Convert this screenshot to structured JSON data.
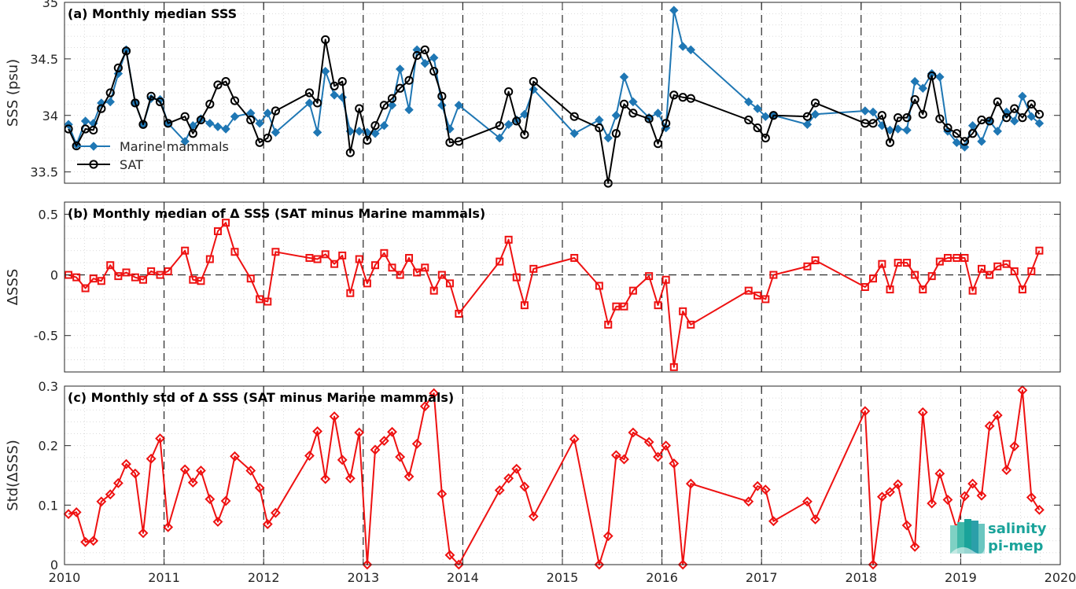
{
  "colors": {
    "marine": "#1f77b4",
    "sat": "#000000",
    "delta": "#ee1111",
    "grid": "#d0d0d0",
    "logo": "#1aa39a"
  },
  "logo": {
    "line1": "salinity",
    "line2": "pi-mep"
  },
  "chart_data": [
    {
      "type": "line",
      "title": "(a) Monthly median SSS",
      "ylabel": "SSS (psu)",
      "xlim": [
        2010,
        2020
      ],
      "ylim": [
        33.4,
        35
      ],
      "yticks": [
        33.5,
        34,
        34.5,
        35
      ],
      "ytick_labels": [
        "33.5",
        "34",
        "34.5",
        "35"
      ],
      "grid": "on",
      "legend": {
        "position": "lower-left",
        "entries": [
          "Marine mammals",
          "SAT"
        ]
      },
      "series": [
        {
          "name": "Marine mammals",
          "marker": "diamond",
          "x": [
            2010.04,
            2010.12,
            2010.21,
            2010.29,
            2010.37,
            2010.46,
            2010.54,
            2010.62,
            2010.71,
            2010.79,
            2010.87,
            2010.96,
            2011.04,
            2011.21,
            2011.29,
            2011.37,
            2011.46,
            2011.54,
            2011.62,
            2011.71,
            2011.87,
            2011.96,
            2012.04,
            2012.12,
            2012.46,
            2012.54,
            2012.62,
            2012.71,
            2012.79,
            2012.87,
            2012.96,
            2013.04,
            2013.12,
            2013.21,
            2013.29,
            2013.37,
            2013.46,
            2013.54,
            2013.62,
            2013.71,
            2013.79,
            2013.87,
            2013.96,
            2014.37,
            2014.46,
            2014.54,
            2014.62,
            2014.71,
            2015.12,
            2015.37,
            2015.46,
            2015.54,
            2015.62,
            2015.71,
            2015.87,
            2015.96,
            2016.04,
            2016.12,
            2016.21,
            2016.29,
            2016.87,
            2016.96,
            2017.04,
            2017.12,
            2017.46,
            2017.54,
            2018.04,
            2018.12,
            2018.21,
            2018.29,
            2018.37,
            2018.46,
            2018.54,
            2018.62,
            2018.71,
            2018.79,
            2018.87,
            2018.96,
            2019.04,
            2019.12,
            2019.21,
            2019.29,
            2019.37,
            2019.46,
            2019.54,
            2019.62,
            2019.71,
            2019.79
          ],
          "y": [
            33.92,
            33.74,
            33.95,
            33.93,
            34.11,
            34.12,
            34.37,
            34.58,
            34.11,
            33.92,
            34.15,
            34.14,
            33.93,
            33.77,
            33.91,
            33.97,
            33.93,
            33.9,
            33.88,
            33.99,
            34.02,
            33.93,
            34.02,
            33.85,
            34.11,
            33.85,
            34.39,
            34.18,
            34.16,
            33.86,
            33.86,
            33.85,
            33.84,
            33.91,
            34.09,
            34.41,
            34.05,
            34.58,
            34.46,
            34.51,
            34.09,
            33.88,
            34.09,
            33.8,
            33.92,
            33.96,
            34.01,
            34.23,
            33.84,
            33.96,
            33.8,
            34.0,
            34.34,
            34.12,
            33.98,
            34.02,
            33.89,
            34.93,
            34.61,
            34.58,
            34.12,
            34.06,
            33.99,
            34.0,
            33.92,
            34.01,
            34.04,
            34.03,
            33.91,
            33.87,
            33.88,
            33.87,
            34.3,
            34.24,
            34.37,
            34.34,
            33.86,
            33.76,
            33.72,
            33.91,
            33.77,
            33.95,
            33.86,
            34.03,
            33.95,
            34.17,
            33.99,
            33.93
          ]
        },
        {
          "name": "SAT",
          "marker": "circle",
          "x": [
            2010.04,
            2010.12,
            2010.21,
            2010.29,
            2010.37,
            2010.46,
            2010.54,
            2010.62,
            2010.71,
            2010.79,
            2010.87,
            2010.96,
            2011.04,
            2011.21,
            2011.29,
            2011.37,
            2011.46,
            2011.54,
            2011.62,
            2011.71,
            2011.87,
            2011.96,
            2012.04,
            2012.12,
            2012.46,
            2012.54,
            2012.62,
            2012.71,
            2012.79,
            2012.87,
            2012.96,
            2013.04,
            2013.12,
            2013.21,
            2013.29,
            2013.37,
            2013.46,
            2013.54,
            2013.62,
            2013.71,
            2013.79,
            2013.87,
            2013.96,
            2014.37,
            2014.46,
            2014.54,
            2014.62,
            2014.71,
            2015.12,
            2015.37,
            2015.46,
            2015.54,
            2015.62,
            2015.71,
            2015.87,
            2015.96,
            2016.04,
            2016.12,
            2016.21,
            2016.29,
            2016.87,
            2016.96,
            2017.04,
            2017.12,
            2017.46,
            2017.54,
            2018.04,
            2018.12,
            2018.21,
            2018.29,
            2018.37,
            2018.46,
            2018.54,
            2018.62,
            2018.71,
            2018.79,
            2018.87,
            2018.96,
            2019.04,
            2019.12,
            2019.21,
            2019.29,
            2019.37,
            2019.46,
            2019.54,
            2019.62,
            2019.71,
            2019.79
          ],
          "y": [
            33.88,
            33.73,
            33.88,
            33.87,
            34.06,
            34.2,
            34.42,
            34.57,
            34.11,
            33.92,
            34.17,
            34.12,
            33.93,
            33.99,
            33.84,
            33.96,
            34.1,
            34.27,
            34.3,
            34.13,
            33.96,
            33.76,
            33.8,
            34.04,
            34.2,
            34.11,
            34.67,
            34.26,
            34.3,
            33.67,
            34.06,
            33.78,
            33.91,
            34.09,
            34.15,
            34.24,
            34.31,
            34.53,
            34.58,
            34.39,
            34.17,
            33.76,
            33.77,
            33.91,
            34.21,
            33.95,
            33.83,
            34.3,
            33.99,
            33.89,
            33.4,
            33.84,
            34.1,
            34.02,
            33.97,
            33.75,
            33.93,
            34.18,
            34.16,
            34.15,
            33.96,
            33.89,
            33.8,
            34.0,
            33.99,
            34.11,
            33.93,
            33.93,
            34.0,
            33.76,
            33.98,
            33.98,
            34.14,
            34.01,
            34.35,
            33.97,
            33.89,
            33.84,
            33.77,
            33.84,
            33.96,
            33.95,
            34.12,
            33.98,
            34.06,
            33.98,
            34.1,
            34.01
          ]
        }
      ]
    },
    {
      "type": "line",
      "title": "(b) Monthly median of Δ SSS (SAT minus Marine mammals)",
      "ylabel": "ΔSSS",
      "xlim": [
        2010,
        2020
      ],
      "ylim": [
        -0.8,
        0.6
      ],
      "yticks": [
        -0.5,
        0,
        0.5
      ],
      "ytick_labels": [
        "-0.5",
        "0",
        "0.5"
      ],
      "zero_line": true,
      "grid": "on",
      "series": [
        {
          "marker": "square",
          "x": [
            2010.04,
            2010.12,
            2010.21,
            2010.29,
            2010.37,
            2010.46,
            2010.54,
            2010.62,
            2010.71,
            2010.79,
            2010.87,
            2010.96,
            2011.04,
            2011.21,
            2011.29,
            2011.37,
            2011.46,
            2011.54,
            2011.62,
            2011.71,
            2011.87,
            2011.96,
            2012.04,
            2012.12,
            2012.46,
            2012.54,
            2012.62,
            2012.71,
            2012.79,
            2012.87,
            2012.96,
            2013.04,
            2013.12,
            2013.21,
            2013.29,
            2013.37,
            2013.46,
            2013.54,
            2013.62,
            2013.71,
            2013.79,
            2013.87,
            2013.96,
            2014.37,
            2014.46,
            2014.54,
            2014.62,
            2014.71,
            2015.12,
            2015.37,
            2015.46,
            2015.54,
            2015.62,
            2015.71,
            2015.87,
            2015.96,
            2016.04,
            2016.12,
            2016.21,
            2016.29,
            2016.87,
            2016.96,
            2017.04,
            2017.12,
            2017.46,
            2017.54,
            2018.04,
            2018.12,
            2018.21,
            2018.29,
            2018.37,
            2018.46,
            2018.54,
            2018.62,
            2018.71,
            2018.79,
            2018.87,
            2018.96,
            2019.04,
            2019.12,
            2019.21,
            2019.29,
            2019.37,
            2019.46,
            2019.54,
            2019.62,
            2019.71,
            2019.79
          ],
          "y": [
            0.0,
            -0.02,
            -0.11,
            -0.03,
            -0.05,
            0.08,
            -0.01,
            0.02,
            -0.02,
            -0.04,
            0.03,
            0.0,
            0.03,
            0.2,
            -0.04,
            -0.05,
            0.13,
            0.36,
            0.43,
            0.19,
            -0.03,
            -0.2,
            -0.22,
            0.19,
            0.14,
            0.13,
            0.17,
            0.09,
            0.16,
            -0.15,
            0.13,
            -0.07,
            0.08,
            0.18,
            0.06,
            0.0,
            0.14,
            0.02,
            0.06,
            -0.13,
            0.0,
            -0.07,
            -0.32,
            0.11,
            0.29,
            -0.02,
            -0.25,
            0.05,
            0.14,
            -0.09,
            -0.41,
            -0.26,
            -0.26,
            -0.13,
            -0.01,
            -0.25,
            -0.04,
            -0.76,
            -0.3,
            -0.41,
            -0.13,
            -0.17,
            -0.2,
            0.0,
            0.07,
            0.12,
            -0.1,
            -0.03,
            0.09,
            -0.12,
            0.1,
            0.1,
            0.0,
            -0.12,
            -0.01,
            0.11,
            0.14,
            0.14,
            0.14,
            -0.13,
            0.05,
            0.0,
            0.07,
            0.09,
            0.03,
            -0.12,
            0.03,
            0.2
          ]
        }
      ]
    },
    {
      "type": "line",
      "title": "(c) Monthly std of Δ SSS (SAT minus Marine mammals)",
      "ylabel": "Std(ΔSSS)",
      "xlabel": "",
      "xlim": [
        2010,
        2020
      ],
      "ylim": [
        0,
        0.3
      ],
      "xticks": [
        2010,
        2011,
        2012,
        2013,
        2014,
        2015,
        2016,
        2017,
        2018,
        2019,
        2020
      ],
      "xtick_labels": [
        "2010",
        "2011",
        "2012",
        "2013",
        "2014",
        "2015",
        "2016",
        "2017",
        "2018",
        "2019",
        "2020"
      ],
      "yticks": [
        0,
        0.1,
        0.2,
        0.3
      ],
      "ytick_labels": [
        "0",
        "0.1",
        "0.2",
        "0.3"
      ],
      "grid": "on",
      "series": [
        {
          "marker": "diamond",
          "x": [
            2010.04,
            2010.12,
            2010.21,
            2010.29,
            2010.37,
            2010.46,
            2010.54,
            2010.62,
            2010.71,
            2010.79,
            2010.87,
            2010.96,
            2011.04,
            2011.21,
            2011.29,
            2011.37,
            2011.46,
            2011.54,
            2011.62,
            2011.71,
            2011.87,
            2011.96,
            2012.04,
            2012.12,
            2012.46,
            2012.54,
            2012.62,
            2012.71,
            2012.79,
            2012.87,
            2012.96,
            2013.04,
            2013.12,
            2013.21,
            2013.29,
            2013.37,
            2013.46,
            2013.54,
            2013.62,
            2013.71,
            2013.79,
            2013.87,
            2013.96,
            2014.37,
            2014.46,
            2014.54,
            2014.62,
            2014.71,
            2015.12,
            2015.37,
            2015.46,
            2015.54,
            2015.62,
            2015.71,
            2015.87,
            2015.96,
            2016.04,
            2016.12,
            2016.21,
            2016.29,
            2016.87,
            2016.96,
            2017.04,
            2017.12,
            2017.46,
            2017.54,
            2018.04,
            2018.12,
            2018.21,
            2018.29,
            2018.37,
            2018.46,
            2018.54,
            2018.62,
            2018.71,
            2018.79,
            2018.87,
            2018.96,
            2019.04,
            2019.12,
            2019.21,
            2019.29,
            2019.37,
            2019.46,
            2019.54,
            2019.62,
            2019.71,
            2019.79
          ],
          "y": [
            0.085,
            0.088,
            0.038,
            0.04,
            0.106,
            0.118,
            0.137,
            0.169,
            0.153,
            0.053,
            0.178,
            0.212,
            0.063,
            0.16,
            0.138,
            0.158,
            0.11,
            0.072,
            0.107,
            0.182,
            0.158,
            0.129,
            0.068,
            0.087,
            0.183,
            0.224,
            0.144,
            0.249,
            0.176,
            0.145,
            0.222,
            0.0,
            0.193,
            0.208,
            0.223,
            0.181,
            0.148,
            0.203,
            0.266,
            0.288,
            0.119,
            0.016,
            0.0,
            0.125,
            0.145,
            0.161,
            0.131,
            0.081,
            0.211,
            0.0,
            0.048,
            0.184,
            0.177,
            0.222,
            0.206,
            0.181,
            0.2,
            0.17,
            0.0,
            0.136,
            0.106,
            0.132,
            0.126,
            0.073,
            0.106,
            0.076,
            0.258,
            0.0,
            0.114,
            0.122,
            0.135,
            0.066,
            0.03,
            0.256,
            0.103,
            0.153,
            0.109,
            0.06,
            0.115,
            0.136,
            0.116,
            0.233,
            0.251,
            0.159,
            0.199,
            0.293,
            0.113,
            0.092
          ]
        }
      ]
    }
  ]
}
